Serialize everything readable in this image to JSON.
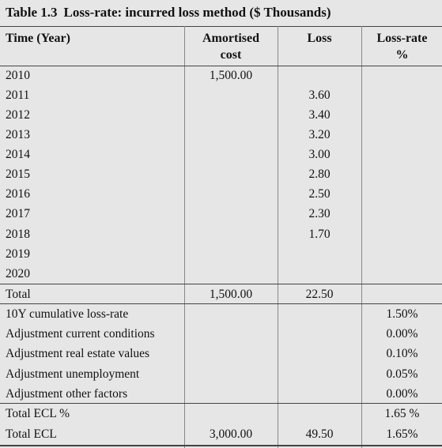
{
  "title": {
    "number": "Table 1.3",
    "text": "Loss-rate: incurred loss method ($ Thousands)"
  },
  "headers": {
    "time": "Time (Year)",
    "amortised_line1": "Amortised",
    "amortised_line2": "cost",
    "loss": "Loss",
    "lossrate_line1": "Loss-rate",
    "lossrate_line2": "%"
  },
  "rows": [
    {
      "label": "2010",
      "amortised": "1,500.00",
      "loss": "",
      "rate": ""
    },
    {
      "label": "2011",
      "amortised": "",
      "loss": "3.60",
      "rate": ""
    },
    {
      "label": "2012",
      "amortised": "",
      "loss": "3.40",
      "rate": ""
    },
    {
      "label": "2013",
      "amortised": "",
      "loss": "3.20",
      "rate": ""
    },
    {
      "label": "2014",
      "amortised": "",
      "loss": "3.00",
      "rate": ""
    },
    {
      "label": "2015",
      "amortised": "",
      "loss": "2.80",
      "rate": ""
    },
    {
      "label": "2016",
      "amortised": "",
      "loss": "2.50",
      "rate": ""
    },
    {
      "label": "2017",
      "amortised": "",
      "loss": "2.30",
      "rate": ""
    },
    {
      "label": "2018",
      "amortised": "",
      "loss": "1.70",
      "rate": ""
    },
    {
      "label": "2019",
      "amortised": "",
      "loss": "",
      "rate": ""
    },
    {
      "label": "2020",
      "amortised": "",
      "loss": "",
      "rate": ""
    },
    {
      "label": "Total",
      "amortised": "1,500.00",
      "loss": "22.50",
      "rate": ""
    },
    {
      "label": "10Y cumulative loss-rate",
      "amortised": "",
      "loss": "",
      "rate": "1.50%"
    },
    {
      "label": "Adjustment current conditions",
      "amortised": "",
      "loss": "",
      "rate": "0.00%"
    },
    {
      "label": "Adjustment real estate values",
      "amortised": "",
      "loss": "",
      "rate": "0.10%"
    },
    {
      "label": "Adjustment unemployment",
      "amortised": "",
      "loss": "",
      "rate": "0.05%"
    },
    {
      "label": "Adjustment other factors",
      "amortised": "",
      "loss": "",
      "rate": "0.00%"
    },
    {
      "label": "Total ECL %",
      "amortised": "",
      "loss": "",
      "rate": "1.65 %"
    },
    {
      "label": "Total ECL",
      "amortised": "3,000.00",
      "loss": "49.50",
      "rate": "1.65%"
    }
  ]
}
